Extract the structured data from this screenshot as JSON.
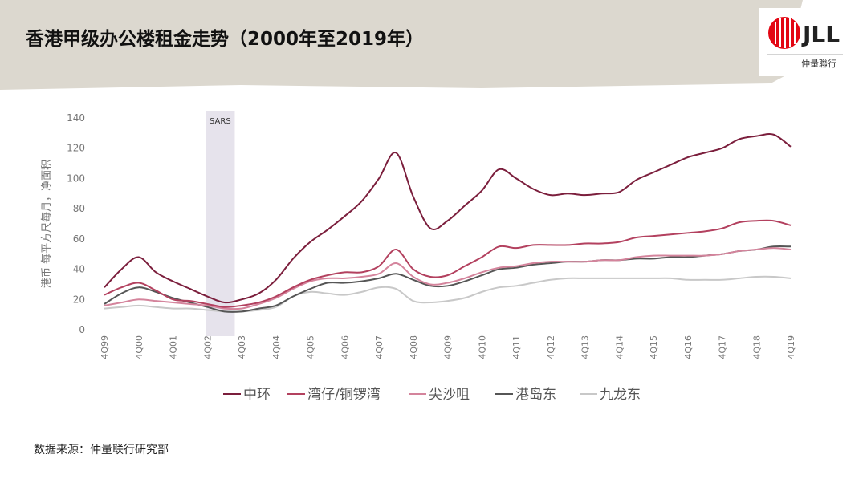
{
  "header": {
    "title": "香港甲级办公楼租金走势（2000年至2019年）",
    "logo": "JLL",
    "logo_sub": "仲量聯行"
  },
  "chart_data": {
    "type": "line",
    "ylabel": "港币 每平方尺每月，净面积",
    "annotation": "SARS",
    "categories": [
      "4Q99",
      null,
      "4Q00",
      null,
      "4Q01",
      null,
      "4Q02",
      null,
      "4Q03",
      null,
      "4Q04",
      null,
      "4Q05",
      null,
      "4Q06",
      null,
      "4Q07",
      null,
      "4Q08",
      null,
      "4Q09",
      null,
      "4Q10",
      null,
      "4Q11",
      null,
      "4Q12",
      null,
      "4Q13",
      null,
      "4Q14",
      null,
      "4Q15",
      null,
      "4Q16",
      null,
      "4Q17",
      null,
      "4Q18",
      null,
      "4Q19"
    ],
    "series": [
      {
        "name": "中环",
        "color": "#7b1e3c",
        "values": [
          28,
          40,
          48,
          38,
          32,
          27,
          22,
          18,
          20,
          24,
          33,
          47,
          58,
          66,
          75,
          85,
          100,
          117,
          88,
          67,
          72,
          82,
          92,
          106,
          100,
          93,
          89,
          90,
          89,
          90,
          91,
          99,
          104,
          109,
          114,
          117,
          120,
          126,
          128,
          129,
          121
        ]
      },
      {
        "name": "湾仔/铜锣湾",
        "color": "#b3415f",
        "values": [
          23,
          28,
          31,
          26,
          20,
          19,
          17,
          15,
          16,
          18,
          22,
          28,
          33,
          36,
          38,
          38,
          42,
          53,
          40,
          35,
          36,
          42,
          48,
          55,
          54,
          56,
          56,
          56,
          57,
          57,
          58,
          61,
          62,
          63,
          64,
          65,
          67,
          71,
          72,
          72,
          69
        ]
      },
      {
        "name": "尖沙咀",
        "color": "#d4849c",
        "values": [
          16,
          18,
          20,
          19,
          18,
          17,
          16,
          14,
          14,
          17,
          21,
          27,
          32,
          34,
          34,
          35,
          37,
          44,
          35,
          30,
          31,
          34,
          38,
          41,
          42,
          44,
          45,
          45,
          45,
          46,
          46,
          48,
          49,
          49,
          49,
          49,
          50,
          52,
          53,
          54,
          53
        ]
      },
      {
        "name": "港岛东",
        "color": "#565656",
        "values": [
          17,
          24,
          28,
          25,
          21,
          18,
          15,
          12,
          12,
          14,
          16,
          22,
          27,
          31,
          31,
          32,
          34,
          37,
          33,
          29,
          29,
          32,
          36,
          40,
          41,
          43,
          44,
          45,
          45,
          46,
          46,
          47,
          47,
          48,
          48,
          49,
          50,
          52,
          53,
          55,
          55
        ]
      },
      {
        "name": "九龙东",
        "color": "#c8c8c8",
        "values": [
          14,
          15,
          16,
          15,
          14,
          14,
          13,
          12,
          12,
          13,
          15,
          22,
          25,
          24,
          23,
          25,
          28,
          27,
          19,
          18,
          19,
          21,
          25,
          28,
          29,
          31,
          33,
          34,
          34,
          34,
          34,
          34,
          34,
          34,
          33,
          33,
          33,
          34,
          35,
          35,
          34
        ]
      }
    ],
    "ylim": [
      0,
      140
    ],
    "yticks": [
      0,
      20,
      40,
      60,
      80,
      100,
      120,
      140
    ],
    "grid": false
  },
  "footer": {
    "source": "数据来源：仲量联行研究部"
  }
}
